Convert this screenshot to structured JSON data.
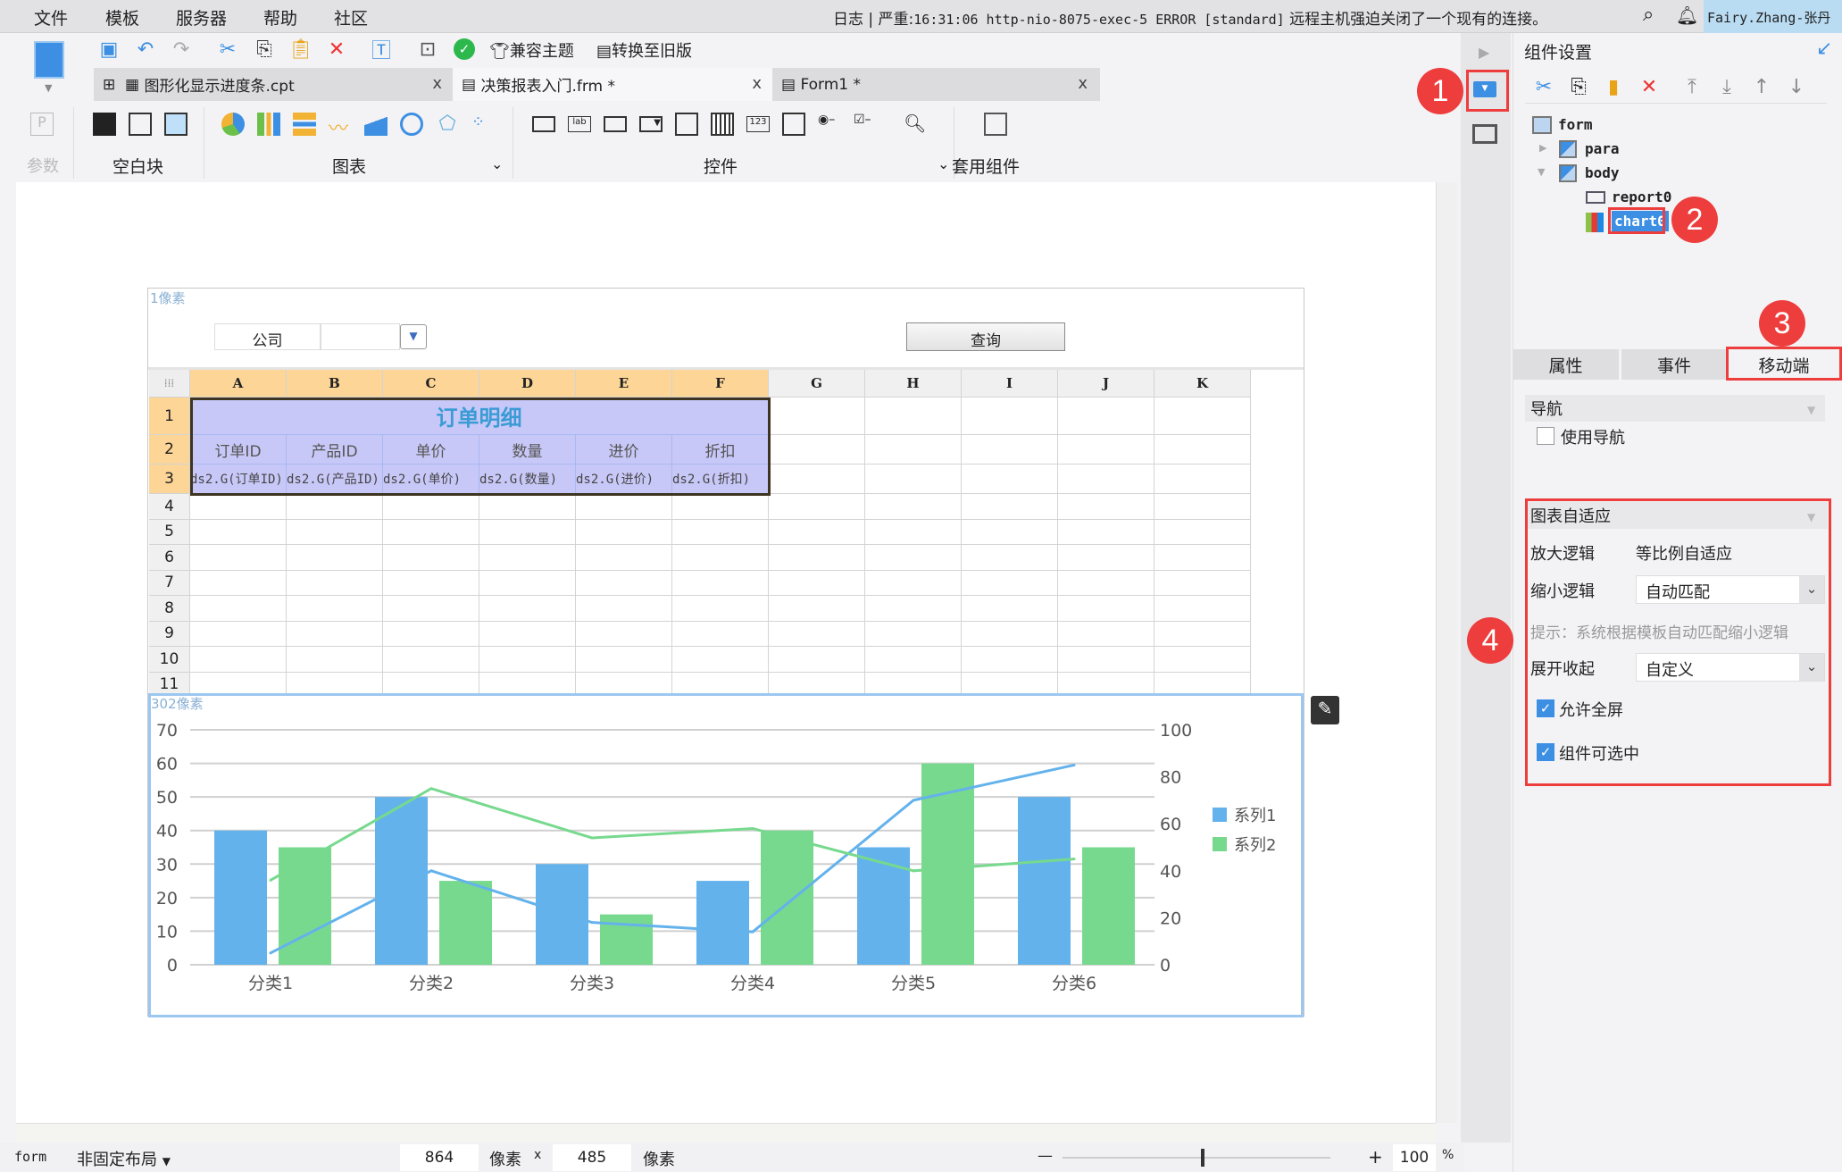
{
  "menubar": {
    "items": [
      "文件",
      "模板",
      "服务器",
      "帮助",
      "社区"
    ],
    "log_label": "日志",
    "log_sep": "|",
    "log_level": "严重:",
    "log_message": "16:31:06 http-nio-8075-exec-5 ERROR [standard]",
    "log_tail": "远程主机强迫关闭了一个现有的连接。",
    "user": "Fairy.Zhang-张丹"
  },
  "toolbar": {
    "icons": [
      "save-icon",
      "undo-icon",
      "redo-icon",
      "cut-icon",
      "copy-icon",
      "paste-icon",
      "delete-icon",
      "text-preview-icon",
      "preview-icon",
      "check-icon"
    ],
    "compat_theme": "兼容主题",
    "convert_old": "转换至旧版"
  },
  "tabs": [
    {
      "label": "图形化显示进度条.cpt"
    },
    {
      "label": "决策报表入门.frm *"
    },
    {
      "label": "Form1 *"
    }
  ],
  "palette": {
    "param": "参数",
    "blank": "空白块",
    "chart": "图表",
    "widget": "控件",
    "template_widget": "套用组件"
  },
  "para": {
    "company_label": "公司",
    "company_value": "",
    "query_button": "查询",
    "size_label": "1像素"
  },
  "grid": {
    "columns": [
      "A",
      "B",
      "C",
      "D",
      "E",
      "F",
      "G",
      "H",
      "I",
      "J",
      "K"
    ],
    "rows": [
      "1",
      "2",
      "3",
      "4",
      "5",
      "6",
      "7",
      "8",
      "9",
      "10",
      "11"
    ],
    "title": "订单明细",
    "headers": [
      "订单ID",
      "产品ID",
      "单价",
      "数量",
      "进价",
      "折扣"
    ],
    "fields": [
      "ds2.G(订单ID)",
      "ds2.G(产品ID)",
      "ds2.G(单价)",
      "ds2.G(数量)",
      "ds2.G(进价)",
      "ds2.G(折扣)"
    ]
  },
  "chart_data": {
    "type": "bar",
    "size_label": "302像素",
    "categories": [
      "分类1",
      "分类2",
      "分类3",
      "分类4",
      "分类5",
      "分类6"
    ],
    "series": [
      {
        "name": "系列1",
        "kind": "bar",
        "axis": "left",
        "color": "#63b2ec",
        "values": [
          40,
          50,
          30,
          25,
          35,
          50
        ]
      },
      {
        "name": "系列2",
        "kind": "bar",
        "axis": "left",
        "color": "#77d98e",
        "values": [
          35,
          25,
          15,
          40,
          60,
          35
        ]
      },
      {
        "kind": "line",
        "axis": "right",
        "color": "#63b2ec",
        "values": [
          5,
          40,
          18,
          14,
          70,
          85
        ]
      },
      {
        "kind": "line",
        "axis": "right",
        "color": "#77d98e",
        "values": [
          36,
          75,
          54,
          58,
          40,
          45
        ]
      }
    ],
    "ylim": [
      0,
      70
    ],
    "yticks": [
      "0",
      "10",
      "20",
      "30",
      "40",
      "50",
      "60",
      "70"
    ],
    "y2lim": [
      0,
      100
    ],
    "y2ticks": [
      "0",
      "20",
      "40",
      "60",
      "80",
      "100"
    ],
    "grid": true,
    "legend": "right"
  },
  "status": {
    "form": "form",
    "layout": "非固定布局",
    "width": "864",
    "unit": "像素",
    "times": "x",
    "height": "485",
    "unit2": "像素",
    "zoom": "100",
    "pct": "%",
    "minus": "—",
    "plus": "+"
  },
  "panel": {
    "title": "组件设置",
    "tree": {
      "form": "form",
      "para": "para",
      "body": "body",
      "report": "report0",
      "chart": "chart0"
    },
    "tabs": [
      "属性",
      "事件",
      "移动端"
    ],
    "nav_section": "导航",
    "use_nav": "使用导航",
    "use_nav_checked": false,
    "adapt_section": "图表自适应",
    "zoom_in_label": "放大逻辑",
    "zoom_in_value": "等比例自适应",
    "zoom_out_label": "缩小逻辑",
    "zoom_out_value": "自动匹配",
    "hint": "提示：系统根据模板自动匹配缩小逻辑",
    "expand_label": "展开收起",
    "expand_value": "自定义",
    "fullscreen": "允许全屏",
    "fullscreen_checked": true,
    "selectable": "组件可选中",
    "selectable_checked": true
  },
  "markers": [
    "1",
    "2",
    "3",
    "4"
  ],
  "colors": {
    "accent": "#3d8fe3",
    "marker": "#ee3d3d",
    "col_header": "#fcd597",
    "title_cell": "#c8c8f8"
  }
}
